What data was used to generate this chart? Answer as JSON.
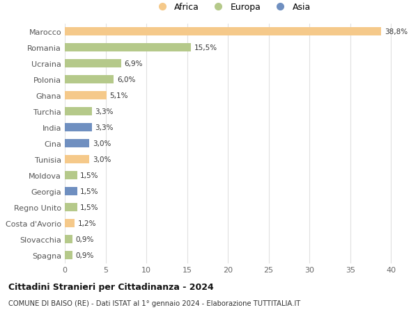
{
  "countries": [
    "Marocco",
    "Romania",
    "Ucraina",
    "Polonia",
    "Ghana",
    "Turchia",
    "India",
    "Cina",
    "Tunisia",
    "Moldova",
    "Georgia",
    "Regno Unito",
    "Costa d'Avorio",
    "Slovacchia",
    "Spagna"
  ],
  "values": [
    38.8,
    15.5,
    6.9,
    6.0,
    5.1,
    3.3,
    3.3,
    3.0,
    3.0,
    1.5,
    1.5,
    1.5,
    1.2,
    0.9,
    0.9
  ],
  "labels": [
    "38,8%",
    "15,5%",
    "6,9%",
    "6,0%",
    "5,1%",
    "3,3%",
    "3,3%",
    "3,0%",
    "3,0%",
    "1,5%",
    "1,5%",
    "1,5%",
    "1,2%",
    "0,9%",
    "0,9%"
  ],
  "continents": [
    "Africa",
    "Europa",
    "Europa",
    "Europa",
    "Africa",
    "Europa",
    "Asia",
    "Asia",
    "Africa",
    "Europa",
    "Asia",
    "Europa",
    "Africa",
    "Europa",
    "Europa"
  ],
  "colors": {
    "Africa": "#f5c98a",
    "Europa": "#b5c98a",
    "Asia": "#6f8fc0"
  },
  "title": "Cittadini Stranieri per Cittadinanza - 2024",
  "subtitle": "COMUNE DI BAISO (RE) - Dati ISTAT al 1° gennaio 2024 - Elaborazione TUTTITALIA.IT",
  "xlim": [
    0,
    41
  ],
  "xticks": [
    0,
    5,
    10,
    15,
    20,
    25,
    30,
    35,
    40
  ],
  "background_color": "#ffffff",
  "grid_color": "#e0e0e0",
  "bar_height": 0.55
}
